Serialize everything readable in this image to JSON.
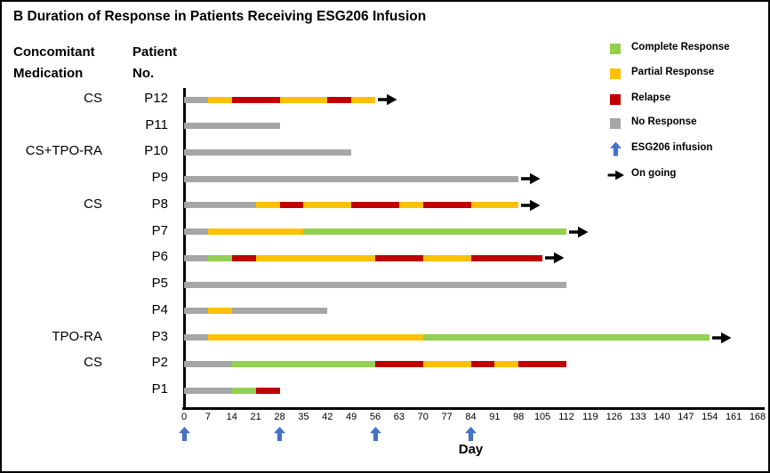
{
  "frame": {
    "title": "B Duration of Response in Patients Receiving ESG206 Infusion"
  },
  "headers": {
    "med_line1": "Concomitant",
    "med_line2": "Medication",
    "patient_line1": "Patient",
    "patient_line2": "No."
  },
  "chart_data": {
    "type": "bar",
    "subtype": "swimmer-plot-horizontal-segmented",
    "title": "B Duration of Response in Patients Receiving ESG206 Infusion",
    "xlabel": "Day",
    "xlim": [
      0,
      168
    ],
    "x_ticks": [
      0,
      7,
      14,
      21,
      28,
      35,
      42,
      49,
      56,
      63,
      70,
      77,
      84,
      91,
      98,
      105,
      112,
      119,
      126,
      133,
      140,
      147,
      154,
      161,
      168
    ],
    "grid": false,
    "infusion_days": [
      0,
      28,
      56,
      84
    ],
    "colors": {
      "complete": "#92D050",
      "partial": "#FFC000",
      "relapse": "#C00000",
      "none": "#A6A6A6",
      "infusion_arrow": "#4472C4",
      "ongoing_arrow": "#000000"
    },
    "legend": [
      {
        "label": "Complete Response",
        "icon": "square",
        "status": "complete"
      },
      {
        "label": "Partial Response",
        "icon": "square",
        "status": "partial"
      },
      {
        "label": "Relapse",
        "icon": "square",
        "status": "relapse"
      },
      {
        "label": "No Response",
        "icon": "square",
        "status": "none"
      },
      {
        "label": "ESG206 infusion",
        "icon": "arrow-up",
        "status": "infusion_arrow"
      },
      {
        "label": "On going",
        "icon": "arrow-right",
        "status": "ongoing_arrow"
      }
    ],
    "patients": [
      {
        "id": "P12",
        "med": "CS",
        "ongoing": true,
        "segments": [
          {
            "status": "none",
            "from": 0,
            "to": 7
          },
          {
            "status": "partial",
            "from": 7,
            "to": 14
          },
          {
            "status": "relapse",
            "from": 14,
            "to": 28
          },
          {
            "status": "partial",
            "from": 28,
            "to": 42
          },
          {
            "status": "relapse",
            "from": 42,
            "to": 49
          },
          {
            "status": "partial",
            "from": 49,
            "to": 56
          }
        ]
      },
      {
        "id": "P11",
        "med": "",
        "ongoing": false,
        "segments": [
          {
            "status": "none",
            "from": 0,
            "to": 28
          }
        ]
      },
      {
        "id": "P10",
        "med": "CS+TPO-RA",
        "ongoing": false,
        "segments": [
          {
            "status": "none",
            "from": 0,
            "to": 49
          }
        ]
      },
      {
        "id": "P9",
        "med": "",
        "ongoing": true,
        "segments": [
          {
            "status": "none",
            "from": 0,
            "to": 98
          }
        ]
      },
      {
        "id": "P8",
        "med": "CS",
        "ongoing": true,
        "segments": [
          {
            "status": "none",
            "from": 0,
            "to": 21
          },
          {
            "status": "partial",
            "from": 21,
            "to": 28
          },
          {
            "status": "relapse",
            "from": 28,
            "to": 35
          },
          {
            "status": "partial",
            "from": 35,
            "to": 49
          },
          {
            "status": "relapse",
            "from": 49,
            "to": 63
          },
          {
            "status": "partial",
            "from": 63,
            "to": 70
          },
          {
            "status": "relapse",
            "from": 70,
            "to": 84
          },
          {
            "status": "partial",
            "from": 84,
            "to": 98
          }
        ]
      },
      {
        "id": "P7",
        "med": "",
        "ongoing": true,
        "segments": [
          {
            "status": "none",
            "from": 0,
            "to": 7
          },
          {
            "status": "partial",
            "from": 7,
            "to": 35
          },
          {
            "status": "complete",
            "from": 35,
            "to": 112
          }
        ]
      },
      {
        "id": "P6",
        "med": "",
        "ongoing": true,
        "segments": [
          {
            "status": "none",
            "from": 0,
            "to": 7
          },
          {
            "status": "complete",
            "from": 7,
            "to": 14
          },
          {
            "status": "relapse",
            "from": 14,
            "to": 21
          },
          {
            "status": "partial",
            "from": 21,
            "to": 56
          },
          {
            "status": "relapse",
            "from": 56,
            "to": 70
          },
          {
            "status": "partial",
            "from": 70,
            "to": 84
          },
          {
            "status": "relapse",
            "from": 84,
            "to": 105
          }
        ]
      },
      {
        "id": "P5",
        "med": "",
        "ongoing": false,
        "segments": [
          {
            "status": "none",
            "from": 0,
            "to": 112
          }
        ]
      },
      {
        "id": "P4",
        "med": "",
        "ongoing": false,
        "segments": [
          {
            "status": "none",
            "from": 0,
            "to": 7
          },
          {
            "status": "partial",
            "from": 7,
            "to": 14
          },
          {
            "status": "none",
            "from": 14,
            "to": 42
          }
        ]
      },
      {
        "id": "P3",
        "med": "TPO-RA",
        "ongoing": true,
        "segments": [
          {
            "status": "none",
            "from": 0,
            "to": 7
          },
          {
            "status": "partial",
            "from": 7,
            "to": 70
          },
          {
            "status": "complete",
            "from": 70,
            "to": 154
          }
        ]
      },
      {
        "id": "P2",
        "med": "CS",
        "ongoing": false,
        "segments": [
          {
            "status": "none",
            "from": 0,
            "to": 14
          },
          {
            "status": "complete",
            "from": 14,
            "to": 56
          },
          {
            "status": "relapse",
            "from": 56,
            "to": 70
          },
          {
            "status": "partial",
            "from": 70,
            "to": 84
          },
          {
            "status": "relapse",
            "from": 84,
            "to": 91
          },
          {
            "status": "partial",
            "from": 91,
            "to": 98
          },
          {
            "status": "relapse",
            "from": 98,
            "to": 112
          }
        ]
      },
      {
        "id": "P1",
        "med": "",
        "ongoing": false,
        "segments": [
          {
            "status": "none",
            "from": 0,
            "to": 14
          },
          {
            "status": "complete",
            "from": 14,
            "to": 21
          },
          {
            "status": "relapse",
            "from": 21,
            "to": 28
          }
        ]
      }
    ]
  }
}
